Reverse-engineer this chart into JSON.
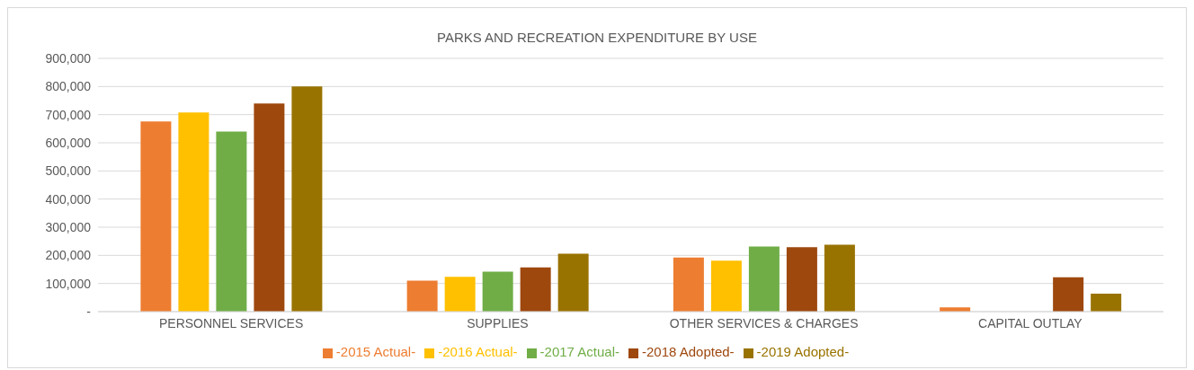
{
  "chart_data": {
    "type": "bar",
    "title": "PARKS AND RECREATION EXPENDITURE BY USE",
    "categories": [
      "PERSONNEL SERVICES",
      "SUPPLIES",
      "OTHER SERVICES & CHARGES",
      "CAPITAL OUTLAY"
    ],
    "series": [
      {
        "name": "-2015 Actual-",
        "color": "#ed7d31",
        "values": [
          676000,
          110000,
          192000,
          15000
        ]
      },
      {
        "name": "-2016 Actual-",
        "color": "#ffc000",
        "values": [
          708000,
          124000,
          181000,
          null
        ]
      },
      {
        "name": "-2017 Actual-",
        "color": "#70ad47",
        "values": [
          640000,
          142000,
          231000,
          null
        ]
      },
      {
        "name": "-2018 Adopted-",
        "color": "#9e480e",
        "values": [
          740000,
          157000,
          229000,
          122000
        ]
      },
      {
        "name": "-2019 Adopted-",
        "color": "#997300",
        "values": [
          800000,
          206000,
          238000,
          64000
        ]
      }
    ],
    "ylim": [
      0,
      900000
    ],
    "yticks": [
      {
        "value": 0,
        "label": "-"
      },
      {
        "value": 100000,
        "label": "100,000"
      },
      {
        "value": 200000,
        "label": "200,000"
      },
      {
        "value": 300000,
        "label": "300,000"
      },
      {
        "value": 400000,
        "label": "400,000"
      },
      {
        "value": 500000,
        "label": "500,000"
      },
      {
        "value": 600000,
        "label": "600,000"
      },
      {
        "value": 700000,
        "label": "700,000"
      },
      {
        "value": 800000,
        "label": "800,000"
      },
      {
        "value": 900000,
        "label": "900,000"
      }
    ],
    "grid": "y",
    "legend": "bottom"
  }
}
